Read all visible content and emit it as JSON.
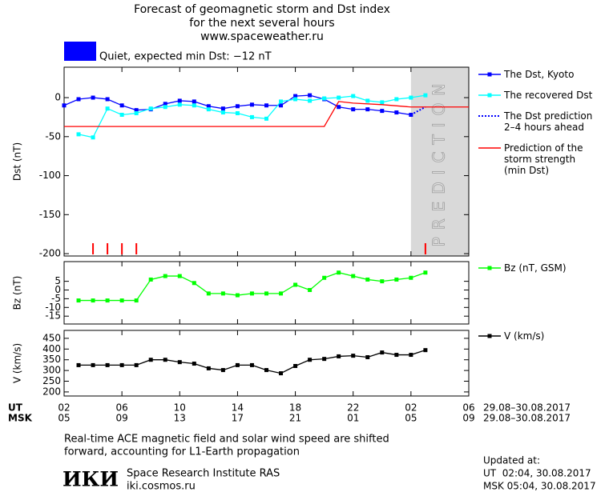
{
  "title": [
    "Forecast of geomagnetic storm and Dst index",
    "for the next several hours",
    "www.spaceweather.ru"
  ],
  "status": {
    "color": "#0000ff",
    "text": "Quiet, expected min Dst: −12 nT"
  },
  "x_axis": {
    "xlim": [
      2,
      30
    ],
    "ut_label": "UT",
    "msk_label": "MSK",
    "ut_ticks": [
      {
        "value": 2,
        "label": "02"
      },
      {
        "value": 6,
        "label": "06"
      },
      10,
      14,
      18,
      22,
      {
        "value": 26,
        "label": "02"
      },
      {
        "value": 30,
        "label": "06"
      }
    ],
    "msk_ticks": [
      {
        "value": 2,
        "label": "05"
      },
      {
        "value": 6,
        "label": "09"
      },
      {
        "value": 10,
        "label": "13"
      },
      {
        "value": 14,
        "label": "17"
      },
      {
        "value": 18,
        "label": "21"
      },
      {
        "value": 22,
        "label": "01"
      },
      {
        "value": 26,
        "label": "05"
      },
      {
        "value": 30,
        "label": "09"
      }
    ],
    "ut_date": "29.08–30.08.2017",
    "msk_date": "29.08–30.08.2017"
  },
  "chart_data": [
    {
      "type": "line",
      "ylabel": "Dst (nT)",
      "ylim": [
        -203,
        39
      ],
      "yticks": [
        0,
        -50,
        -100,
        -150,
        -200
      ],
      "prediction_region": {
        "xlim": [
          26,
          30
        ],
        "label": "PREDICTION",
        "color": "#d9d9d9"
      },
      "event_markers": {
        "color": "#ff0000",
        "x": [
          4,
          5,
          6,
          7,
          27
        ]
      },
      "series": [
        {
          "name": "The Dst, Kyoto",
          "color": "#0000ff",
          "marker": "square",
          "dash": "none",
          "x": [
            2,
            3,
            4,
            5,
            6,
            7,
            8,
            9,
            10,
            11,
            12,
            13,
            14,
            15,
            16,
            17,
            18,
            19,
            20,
            21,
            22,
            23,
            24,
            25,
            26
          ],
          "values": [
            -10,
            -2,
            0,
            -2,
            -10,
            -16,
            -15,
            -8,
            -4,
            -5,
            -11,
            -14,
            -11,
            -9,
            -10,
            -10,
            2,
            3,
            -2,
            -12,
            -15,
            -15,
            -17,
            -19,
            -22
          ]
        },
        {
          "name": "The recovered Dst",
          "color": "#00ffff",
          "marker": "square",
          "dash": "none",
          "x": [
            3,
            4,
            5,
            6,
            7,
            8,
            9,
            10,
            11,
            12,
            13,
            14,
            15,
            16,
            17,
            18,
            19,
            20,
            21,
            22,
            23,
            24,
            25,
            26,
            27
          ],
          "values": [
            -47,
            -51,
            -14,
            -22,
            -20,
            -14,
            -12,
            -9,
            -10,
            -15,
            -19,
            -20,
            -25,
            -27,
            -5,
            -2,
            -4,
            -1,
            0,
            2,
            -4,
            -6,
            -2,
            0,
            3
          ]
        },
        {
          "name": "The Dst prediction\n2–4 hours ahead",
          "color": "#0000ff",
          "marker": "none",
          "dash": "2 2",
          "x": [
            26,
            27
          ],
          "values": [
            -22,
            -12
          ]
        },
        {
          "name": "Prediction of the\nstorm strength\n(min Dst)",
          "color": "#ff0000",
          "marker": "none",
          "dash": "none",
          "x": [
            2,
            20,
            21,
            22,
            24,
            26,
            30
          ],
          "values": [
            -37,
            -37,
            -5,
            -7,
            -9,
            -12,
            -12
          ]
        }
      ]
    },
    {
      "type": "line",
      "ylabel": "Bz (nT)",
      "ylim": [
        -19.5,
        16.3
      ],
      "yticks": [
        5,
        0,
        -5,
        -10,
        -15
      ],
      "series": [
        {
          "name": "Bz (nT, GSM)",
          "color": "#00ff00",
          "marker": "square",
          "dash": "none",
          "x": [
            3,
            4,
            5,
            6,
            7,
            8,
            9,
            10,
            11,
            12,
            13,
            14,
            15,
            16,
            17,
            18,
            19,
            20,
            21,
            22,
            23,
            24,
            25,
            26,
            27
          ],
          "values": [
            -6,
            -6,
            -6,
            -6,
            -6,
            6,
            8,
            8,
            4,
            -2,
            -2,
            -3,
            -2,
            -2,
            -2,
            3,
            0,
            7,
            10,
            8,
            6,
            5,
            6,
            7,
            10
          ]
        }
      ]
    },
    {
      "type": "line",
      "ylabel": "V (km/s)",
      "ylim": [
        181,
        487
      ],
      "yticks": [
        450,
        400,
        350,
        300,
        250,
        200
      ],
      "series": [
        {
          "name": "V (km/s)",
          "color": "#000000",
          "marker": "square",
          "dash": "none",
          "x": [
            3,
            4,
            5,
            6,
            7,
            8,
            9,
            10,
            11,
            12,
            13,
            14,
            15,
            16,
            17,
            18,
            19,
            20,
            21,
            22,
            23,
            24,
            25,
            26,
            27
          ],
          "values": [
            325,
            325,
            325,
            325,
            325,
            350,
            350,
            339,
            332,
            310,
            302,
            325,
            325,
            302,
            287,
            321,
            350,
            354,
            366,
            369,
            362,
            384,
            373,
            373,
            395
          ]
        }
      ]
    }
  ],
  "note": [
    "Real-time ACE magnetic field and solar wind speed are shifted",
    "forward, accounting for L1-Earth propagation"
  ],
  "institute": {
    "logo": "ИКИ",
    "name": "Space Research Institute RAS",
    "url": "iki.cosmos.ru"
  },
  "updated": {
    "label": "Updated at:",
    "lines": [
      "UT  02:04, 30.08.2017",
      "MSK 05:04, 30.08.2017"
    ]
  }
}
